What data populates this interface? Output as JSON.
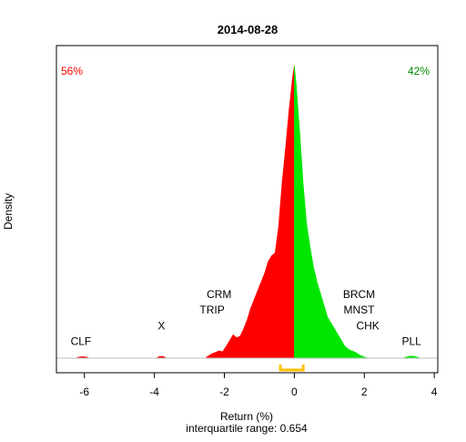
{
  "chart_data": {
    "type": "area",
    "title": "2014-08-28",
    "xlabel": "Return (%)",
    "ylabel": "Density",
    "subtitle": "interquartile range: 0.654",
    "xlim": [
      -6.8,
      4.1
    ],
    "ylim": [
      0,
      1
    ],
    "xticks": [
      -6,
      -4,
      -2,
      0,
      2,
      4
    ],
    "grid": false,
    "negative_share": "56%",
    "positive_share": "42%",
    "colors": {
      "negative": "#ff0000",
      "positive": "#00e600",
      "iqr": "#ffc000",
      "axis": "#000000",
      "baseline": "#bebebe"
    },
    "density": {
      "x": [
        -6.25,
        -6.15,
        -6.05,
        -5.95,
        -5.85,
        -3.95,
        -3.85,
        -3.75,
        -3.65,
        -2.55,
        -2.45,
        -2.35,
        -2.25,
        -2.15,
        -2.05,
        -1.95,
        -1.85,
        -1.75,
        -1.65,
        -1.55,
        -1.45,
        -1.35,
        -1.25,
        -1.15,
        -1.05,
        -0.95,
        -0.85,
        -0.75,
        -0.65,
        -0.55,
        -0.45,
        -0.35,
        -0.25,
        -0.15,
        -0.05,
        0.0,
        0.05,
        0.15,
        0.25,
        0.35,
        0.45,
        0.55,
        0.65,
        0.75,
        0.85,
        0.95,
        1.05,
        1.15,
        1.25,
        1.35,
        1.45,
        1.55,
        1.65,
        1.75,
        1.85,
        1.95,
        2.05,
        2.15,
        3.1,
        3.2,
        3.3,
        3.4,
        3.5,
        3.6
      ],
      "y": [
        0.0,
        0.004,
        0.005,
        0.004,
        0.0,
        0.0,
        0.006,
        0.006,
        0.0,
        0.0,
        0.008,
        0.015,
        0.02,
        0.025,
        0.022,
        0.04,
        0.06,
        0.08,
        0.07,
        0.075,
        0.1,
        0.13,
        0.17,
        0.2,
        0.23,
        0.26,
        0.29,
        0.33,
        0.35,
        0.36,
        0.45,
        0.6,
        0.72,
        0.85,
        0.96,
        1.0,
        0.94,
        0.78,
        0.6,
        0.46,
        0.38,
        0.31,
        0.26,
        0.22,
        0.18,
        0.14,
        0.12,
        0.1,
        0.08,
        0.06,
        0.04,
        0.03,
        0.025,
        0.02,
        0.012,
        0.006,
        0.002,
        0.0,
        0.0,
        0.004,
        0.007,
        0.007,
        0.004,
        0.0
      ]
    },
    "iqr": {
      "low": -0.4,
      "high": 0.254
    },
    "annotations": [
      {
        "text": "CLF",
        "x": -6.1,
        "y": 0.045
      },
      {
        "text": "X",
        "x": -3.8,
        "y": 0.098
      },
      {
        "text": "TRIP",
        "x": -2.35,
        "y": 0.152
      },
      {
        "text": "CRM",
        "x": -2.15,
        "y": 0.205
      },
      {
        "text": "BRCM",
        "x": 1.85,
        "y": 0.205
      },
      {
        "text": "MNST",
        "x": 1.85,
        "y": 0.152
      },
      {
        "text": "CHK",
        "x": 2.1,
        "y": 0.098
      },
      {
        "text": "PLL",
        "x": 3.35,
        "y": 0.045
      }
    ]
  }
}
